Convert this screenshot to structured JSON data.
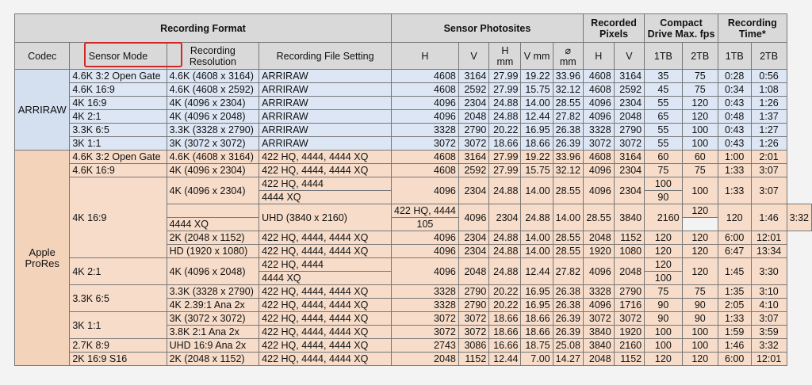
{
  "header": {
    "recording_format": "Recording Format",
    "sensor_photosites": "Sensor Photosites",
    "recorded_pixels": "Recorded Pixels",
    "compact_drive": "Compact Drive Max. fps",
    "recording_time": "Recording Time*",
    "codec": "Codec",
    "sensor_mode": "Sensor Mode",
    "recording_resolution": "Recording Resolution",
    "recording_file_setting": "Recording File Setting",
    "h": "H",
    "v": "V",
    "h_mm": "H mm",
    "v_mm": "V mm",
    "diam_mm": "⌀ mm",
    "tb1": "1TB",
    "tb2": "2TB"
  },
  "codecs": {
    "arriraw": "ARRIRAW",
    "prores": "Apple ProRes"
  },
  "rows": [
    [
      "4.6K 3:2 Open Gate",
      "4.6K (4608 x 3164)",
      "ARRIRAW",
      "4608",
      "3164",
      "27.99",
      "19.22",
      "33.96",
      "4608",
      "3164",
      "35",
      "75",
      "0:28",
      "0:56"
    ],
    [
      "4.6K 16:9",
      "4.6K (4608 x 2592)",
      "ARRIRAW",
      "4608",
      "2592",
      "27.99",
      "15.75",
      "32.12",
      "4608",
      "2592",
      "45",
      "75",
      "0:34",
      "1:08"
    ],
    [
      "4K 16:9",
      "4K (4096 x 2304)",
      "ARRIRAW",
      "4096",
      "2304",
      "24.88",
      "14.00",
      "28.55",
      "4096",
      "2304",
      "55",
      "120",
      "0:43",
      "1:26"
    ],
    [
      "4K 2:1",
      "4K (4096 x 2048)",
      "ARRIRAW",
      "4096",
      "2048",
      "24.88",
      "12.44",
      "27.82",
      "4096",
      "2048",
      "65",
      "120",
      "0:48",
      "1:37"
    ],
    [
      "3.3K 6:5",
      "3.3K (3328 x 2790)",
      "ARRIRAW",
      "3328",
      "2790",
      "20.22",
      "16.95",
      "26.38",
      "3328",
      "2790",
      "55",
      "100",
      "0:43",
      "1:27"
    ],
    [
      "3K 1:1",
      "3K (3072 x 3072)",
      "ARRIRAW",
      "3072",
      "3072",
      "18.66",
      "18.66",
      "26.39",
      "3072",
      "3072",
      "55",
      "100",
      "0:43",
      "1:26"
    ],
    [
      "4.6K 3:2 Open Gate",
      "4.6K (4608 x 3164)",
      "422 HQ, 4444, 4444 XQ",
      "4608",
      "3164",
      "27.99",
      "19.22",
      "33.96",
      "4608",
      "3164",
      "60",
      "60",
      "1:00",
      "2:01"
    ],
    [
      "4.6K 16:9",
      "4K (4096 x 2304)",
      "422 HQ, 4444, 4444 XQ",
      "4608",
      "2592",
      "27.99",
      "15.75",
      "32.12",
      "4096",
      "2304",
      "75",
      "75",
      "1:33",
      "3:07"
    ],
    [
      "4K 16:9",
      "4K (4096 x 2304)",
      "422 HQ, 4444",
      "4096",
      "2304",
      "24.88",
      "14.00",
      "28.55",
      "4096",
      "2304",
      "100",
      "100",
      "1:33",
      "3:07"
    ],
    [
      "",
      "",
      "4444 XQ",
      "",
      "",
      "",
      "",
      "",
      "",
      "",
      "90",
      "",
      "",
      ""
    ],
    [
      "",
      "UHD (3840 x 2160)",
      "422 HQ, 4444",
      "4096",
      "2304",
      "24.88",
      "14.00",
      "28.55",
      "3840",
      "2160",
      "120",
      "120",
      "1:46",
      "3:32"
    ],
    [
      "",
      "",
      "4444 XQ",
      "",
      "",
      "",
      "",
      "",
      "",
      "",
      "105",
      "",
      "",
      ""
    ],
    [
      "",
      "2K (2048 x 1152)",
      "422 HQ, 4444, 4444 XQ",
      "4096",
      "2304",
      "24.88",
      "14.00",
      "28.55",
      "2048",
      "1152",
      "120",
      "120",
      "6:00",
      "12:01"
    ],
    [
      "",
      "HD (1920 x 1080)",
      "422 HQ, 4444, 4444 XQ",
      "4096",
      "2304",
      "24.88",
      "14.00",
      "28.55",
      "1920",
      "1080",
      "120",
      "120",
      "6:47",
      "13:34"
    ],
    [
      "4K 2:1",
      "4K (4096 x 2048)",
      "422 HQ, 4444",
      "4096",
      "2048",
      "24.88",
      "12.44",
      "27.82",
      "4096",
      "2048",
      "120",
      "120",
      "1:45",
      "3:30"
    ],
    [
      "",
      "",
      "4444 XQ",
      "",
      "",
      "",
      "",
      "",
      "",
      "",
      "100",
      "",
      "",
      ""
    ],
    [
      "3.3K 6:5",
      "3.3K (3328 x 2790)",
      "422 HQ, 4444, 4444 XQ",
      "3328",
      "2790",
      "20.22",
      "16.95",
      "26.38",
      "3328",
      "2790",
      "75",
      "75",
      "1:35",
      "3:10"
    ],
    [
      "",
      "4K 2.39:1 Ana 2x",
      "422 HQ, 4444, 4444 XQ",
      "3328",
      "2790",
      "20.22",
      "16.95",
      "26.38",
      "4096",
      "1716",
      "90",
      "90",
      "2:05",
      "4:10"
    ],
    [
      "3K 1:1",
      "3K (3072 x 3072)",
      "422 HQ, 4444, 4444 XQ",
      "3072",
      "3072",
      "18.66",
      "18.66",
      "26.39",
      "3072",
      "3072",
      "90",
      "90",
      "1:33",
      "3:07"
    ],
    [
      "",
      "3.8K 2:1 Ana 2x",
      "422 HQ, 4444, 4444 XQ",
      "3072",
      "3072",
      "18.66",
      "18.66",
      "26.39",
      "3840",
      "1920",
      "100",
      "100",
      "1:59",
      "3:59"
    ],
    [
      "2.7K 8:9",
      "UHD 16:9 Ana 2x",
      "422 HQ, 4444, 4444 XQ",
      "2743",
      "3086",
      "16.66",
      "18.75",
      "25.08",
      "3840",
      "2160",
      "100",
      "100",
      "1:46",
      "3:32"
    ],
    [
      "2K 16:9 S16",
      "2K (2048 x 1152)",
      "422 HQ, 4444, 4444 XQ",
      "2048",
      "1152",
      "12.44",
      "7.00",
      "14.27",
      "2048",
      "1152",
      "120",
      "120",
      "6:00",
      "12:01"
    ]
  ]
}
